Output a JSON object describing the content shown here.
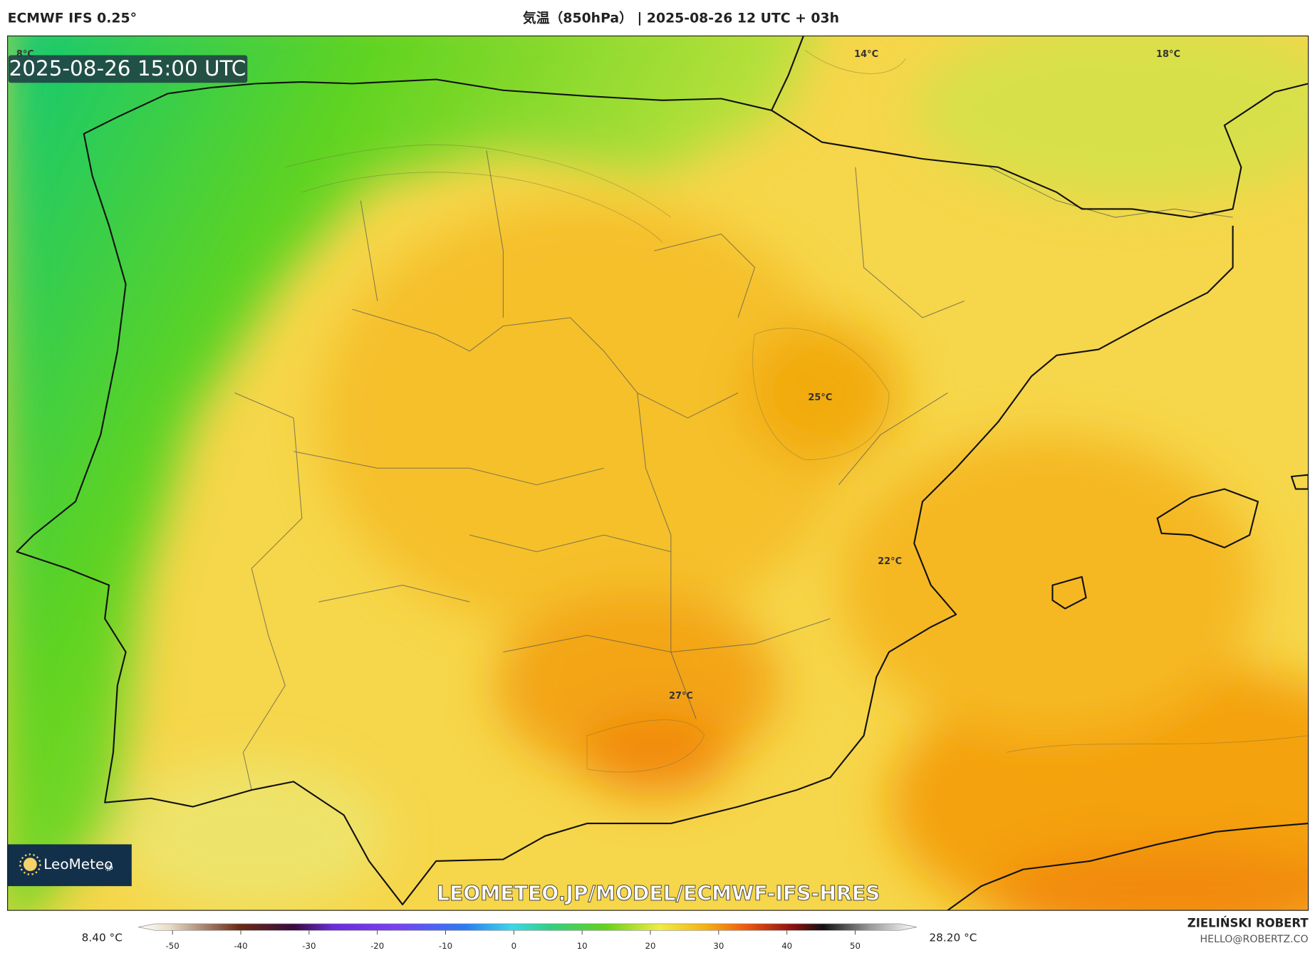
{
  "header": {
    "model": "ECMWF IFS 0.25°",
    "title": "気温（850hPa） | 2025-08-26 12 UTC + 03h"
  },
  "map": {
    "timestamp": "2025-08-26 15:00 UTC",
    "contour_labels": [
      "8°C",
      "14°C",
      "18°C",
      "25°C",
      "22°C",
      "27°C"
    ],
    "watermark": "LEOMETEO.JP/MODEL/ECMWF-IFS-HRES",
    "logo": {
      "name": "LeoMeteo",
      "suffix": ".jp"
    }
  },
  "colorbar": {
    "min_label": "8.40 °C",
    "max_label": "28.20 °C",
    "lim": [
      -55,
      59
    ],
    "ticks": [
      -50,
      -40,
      -30,
      -20,
      -10,
      0,
      10,
      20,
      30,
      40,
      50
    ]
  },
  "footer": {
    "author": "ZIELIŃSKI ROBERT",
    "email": "HELLO@ROBERTZ.CO"
  }
}
